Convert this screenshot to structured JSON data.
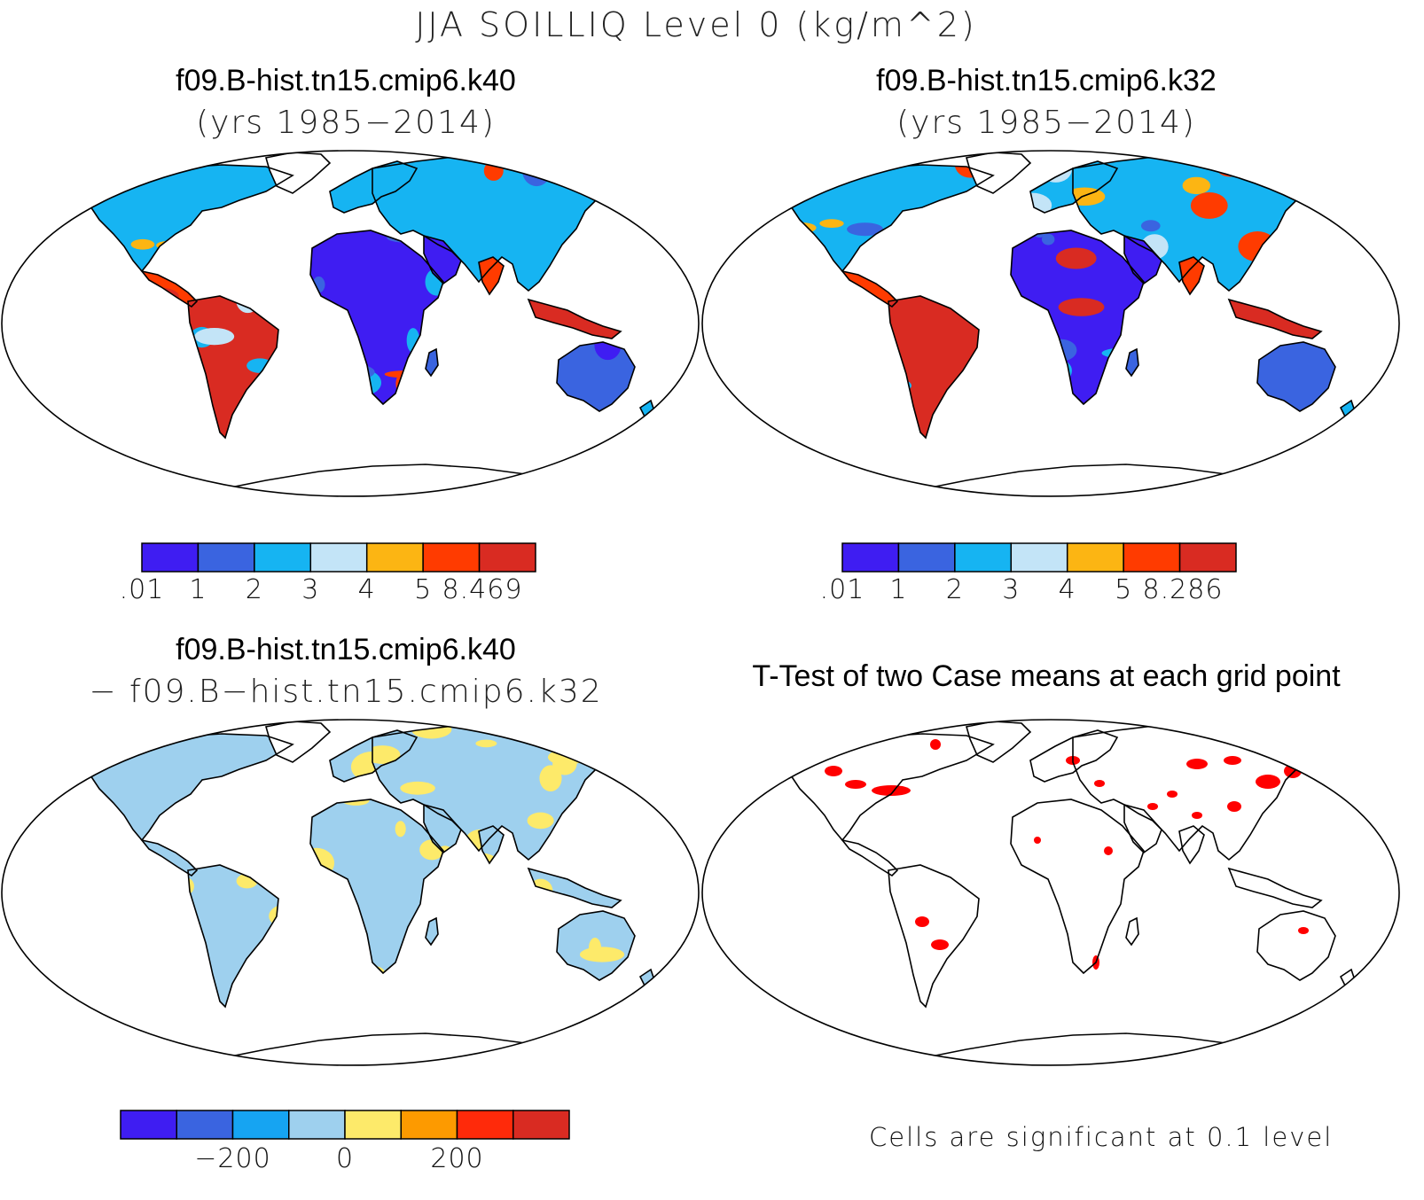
{
  "figure": {
    "title": "JJA SOILLIQ Level 0 (kg/m^2)"
  },
  "panels": [
    {
      "id": "k40",
      "title": "f09.B-hist.tn15.cmip6.k40",
      "subtitle": "(yrs 1985−2014)",
      "colorbar": {
        "colors": [
          "#3f1df2",
          "#3a64e0",
          "#16b4f2",
          "#c3e4f7",
          "#fcb513",
          "#ff3b00",
          "#d92b22"
        ],
        "labels": [
          ".01",
          "1",
          "2",
          "3",
          "4",
          "5",
          "8.469"
        ]
      }
    },
    {
      "id": "k32",
      "title": "f09.B-hist.tn15.cmip6.k32",
      "subtitle": "(yrs 1985−2014)",
      "colorbar": {
        "colors": [
          "#3f1df2",
          "#3a64e0",
          "#16b4f2",
          "#c3e4f7",
          "#fcb513",
          "#ff3b00",
          "#d92b22"
        ],
        "labels": [
          ".01",
          "1",
          "2",
          "3",
          "4",
          "5",
          "8.286"
        ]
      }
    },
    {
      "id": "diff",
      "title": "f09.B-hist.tn15.cmip6.k40",
      "subtitle": "− f09.B−hist.tn15.cmip6.k32",
      "colorbar": {
        "colors": [
          "#3f1df2",
          "#3a64e0",
          "#16a4f2",
          "#9ed0ee",
          "#fdea6a",
          "#fd9a00",
          "#ff2a0a",
          "#d92b22"
        ],
        "labels": [
          "−200",
          "0",
          "200"
        ]
      }
    },
    {
      "id": "ttest",
      "title": "T-Test of two Case means at each grid point",
      "note": "Cells are significant at 0.1 level",
      "significant_color": "#ff0000"
    }
  ]
}
